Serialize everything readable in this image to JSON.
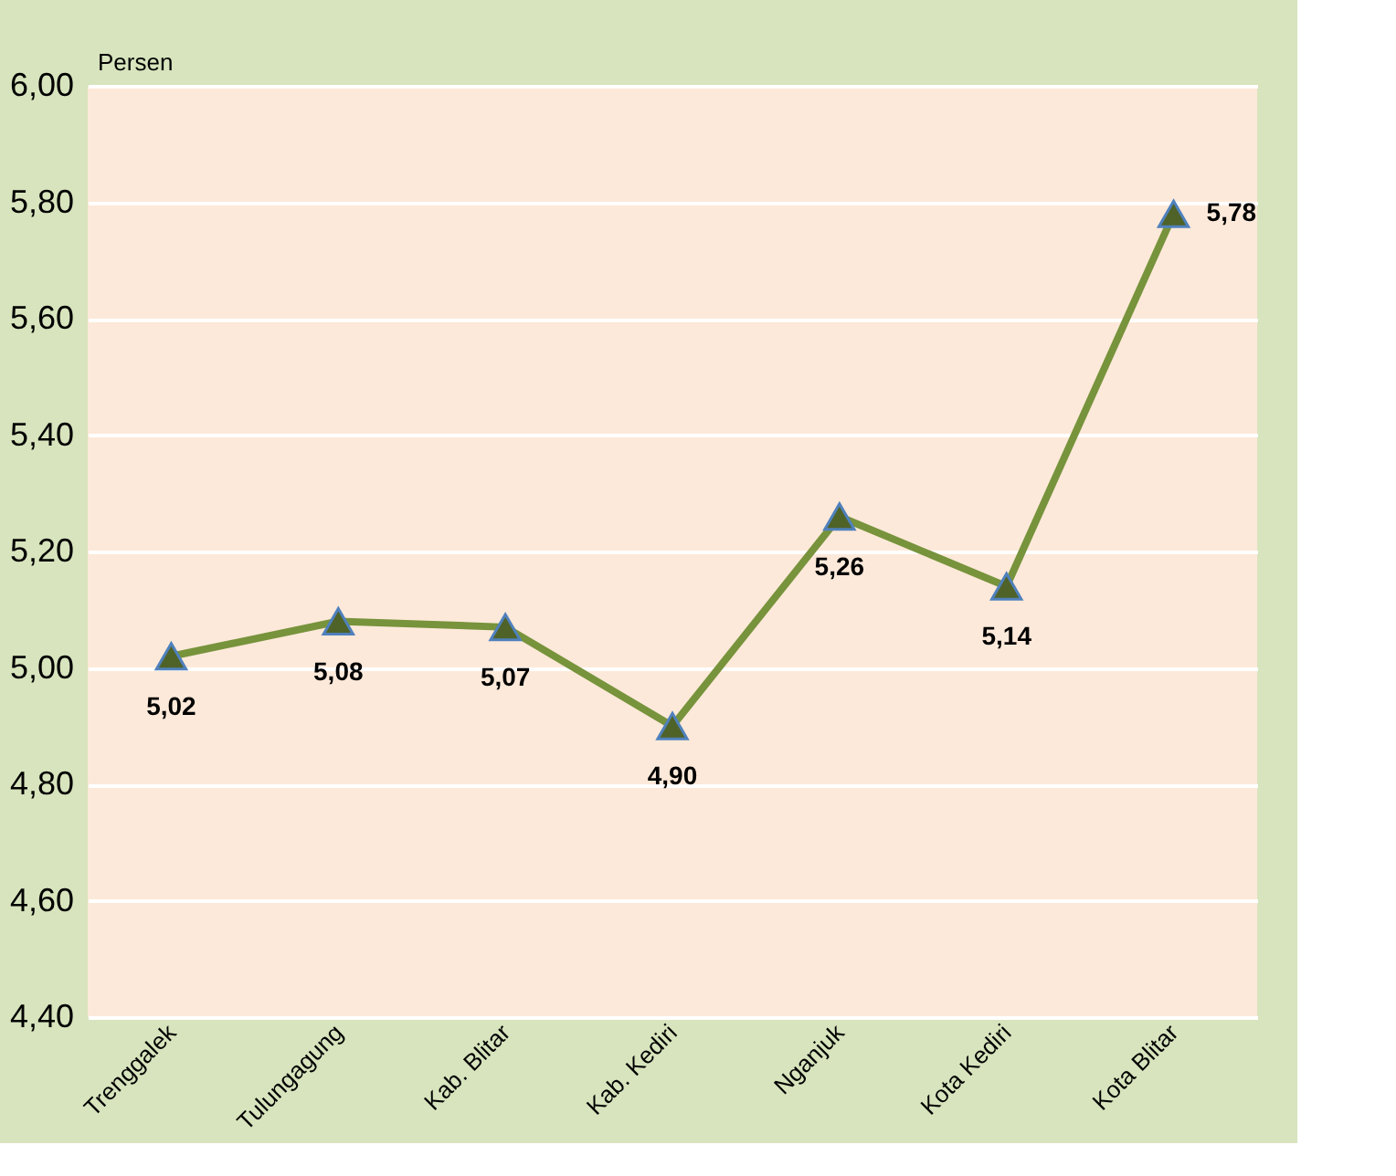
{
  "chart_data": {
    "type": "line",
    "ylabel": "Persen",
    "categories": [
      "Trenggalek",
      "Tulungagung",
      "Kab. Blitar",
      "Kab. Kediri",
      "Nganjuk",
      "Kota Kediri",
      "Kota Blitar"
    ],
    "series": [
      {
        "color": "#77933c",
        "values": [
          5.02,
          5.08,
          5.07,
          4.9,
          5.26,
          5.14,
          5.78
        ],
        "value_labels": [
          "5,02",
          "5,08",
          "5,07",
          "4,90",
          "5,26",
          "5,14",
          "5,78"
        ]
      }
    ],
    "ylim": [
      4.4,
      6.0
    ],
    "yticks": [
      {
        "value": 4.4,
        "label": "4,40"
      },
      {
        "value": 4.6,
        "label": "4,60"
      },
      {
        "value": 4.8,
        "label": "4,80"
      },
      {
        "value": 5.0,
        "label": "5,00"
      },
      {
        "value": 5.2,
        "label": "5,20"
      },
      {
        "value": 5.4,
        "label": "5,40"
      },
      {
        "value": 5.6,
        "label": "5,60"
      },
      {
        "value": 5.8,
        "label": "5,80"
      },
      {
        "value": 6.0,
        "label": "6,00"
      }
    ],
    "grid": "y",
    "marker": "triangle",
    "line_style": "solid"
  }
}
